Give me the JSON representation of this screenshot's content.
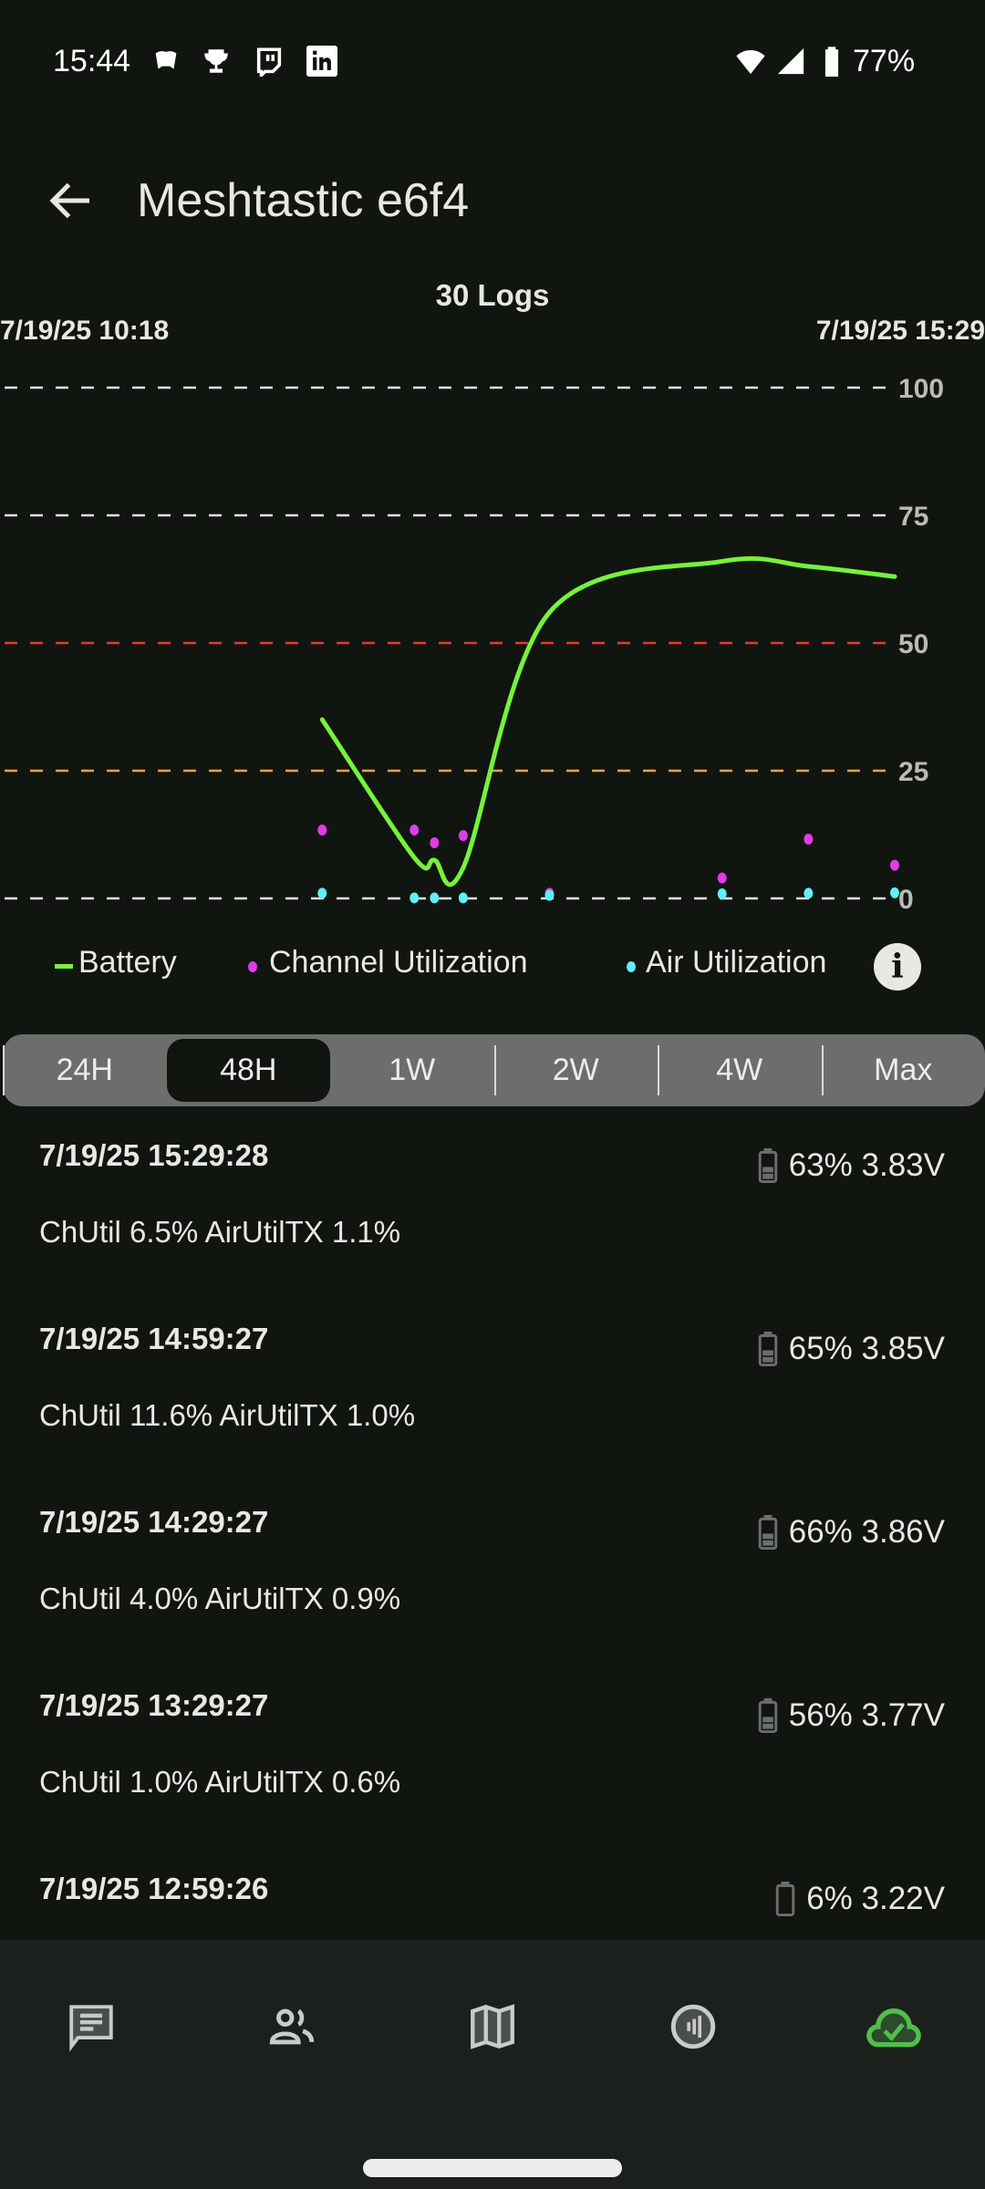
{
  "status_bar": {
    "time": "15:44",
    "battery": "77%",
    "icons": [
      "discord-icon",
      "trophy-icon",
      "twitch-icon",
      "linkedin-icon",
      "wifi-icon",
      "signal-icon",
      "battery-icon"
    ]
  },
  "app_bar": {
    "title": "Meshtastic e6f4",
    "back_icon": "arrow-back-icon"
  },
  "chart_data": {
    "type": "line",
    "title": "30 Logs",
    "x_start_label": "7/19/25 10:18",
    "x_end_label": "7/19/25 15:29",
    "x_range": [
      "7/19/25 10:18",
      "7/19/25 15:29"
    ],
    "ylim": [
      0,
      100
    ],
    "y_ticks": [
      "100",
      "75",
      "50",
      "25",
      "0"
    ],
    "threshold_colors": {
      "50": "#e53935",
      "25": "#f5a04a",
      "default": "#e0e0e0"
    },
    "grid": true,
    "legend": "bottom",
    "x": [
      "12:10",
      "12:42",
      "12:49",
      "12:59",
      "13:29",
      "14:29",
      "14:59",
      "15:29"
    ],
    "series": [
      {
        "name": "Battery",
        "kind": "line",
        "color": "#76f23c",
        "values": [
          35,
          8,
          7.5,
          6,
          56,
          66,
          65,
          63
        ]
      },
      {
        "name": "Channel Utilization",
        "kind": "scatter",
        "color": "#e23ce8",
        "values": [
          13.4,
          13.4,
          10.9,
          12.3,
          1.0,
          4.0,
          11.6,
          6.5
        ]
      },
      {
        "name": "Air Utilization",
        "kind": "scatter",
        "color": "#5ff0f5",
        "values": [
          1.0,
          0.1,
          0.1,
          0.1,
          0.6,
          0.9,
          1.0,
          1.1
        ]
      }
    ]
  },
  "legend": {
    "battery": "Battery",
    "channel": "Channel Utilization",
    "air": "Air Utilization",
    "info": "i"
  },
  "tabs": [
    {
      "label": "24H"
    },
    {
      "label": "48H",
      "selected": true
    },
    {
      "label": "1W"
    },
    {
      "label": "2W"
    },
    {
      "label": "4W"
    },
    {
      "label": "Max"
    }
  ],
  "logs": [
    {
      "time": "7/19/25 15:29:28",
      "battery": "63% 3.83V",
      "level": 63,
      "util": "ChUtil 6.5% AirUtilTX 1.1%"
    },
    {
      "time": "7/19/25 14:59:27",
      "battery": "65% 3.85V",
      "level": 65,
      "util": "ChUtil 11.6% AirUtilTX 1.0%"
    },
    {
      "time": "7/19/25 14:29:27",
      "battery": "66% 3.86V",
      "level": 66,
      "util": "ChUtil 4.0% AirUtilTX 0.9%"
    },
    {
      "time": "7/19/25 13:29:27",
      "battery": "56% 3.77V",
      "level": 56,
      "util": "ChUtil 1.0% AirUtilTX 0.6%"
    },
    {
      "time": "7/19/25 12:59:26",
      "battery": "6% 3.22V",
      "level": 6
    }
  ],
  "nav": {
    "items": [
      "messages-icon",
      "nodes-icon",
      "map-icon",
      "channels-icon",
      "connected-cloud-icon"
    ],
    "active": 4,
    "active_color": "#4fbf4a"
  }
}
